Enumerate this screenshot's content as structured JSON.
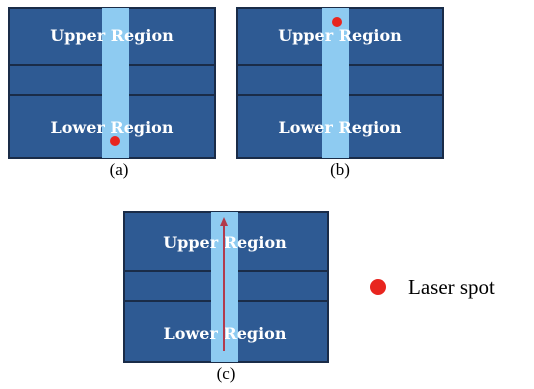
{
  "panels": [
    {
      "upper_label": "Upper Region",
      "lower_label": "Lower Region",
      "caption": "(a)",
      "laser_spot": "lower"
    },
    {
      "upper_label": "Upper Region",
      "lower_label": "Lower Region",
      "caption": "(b)",
      "laser_spot": "upper"
    },
    {
      "upper_label": "Upper Region",
      "lower_label": "Lower Region",
      "caption": "(c)",
      "laser_spot": "scan-path"
    }
  ],
  "legend": {
    "label": "Laser spot",
    "icon": "laser-spot-dot-icon"
  },
  "colors": {
    "panel_fill": "#2e5a93",
    "panel_line": "#1a2c48",
    "strip_fill": "#8ecbf1",
    "laser": "#e8251f",
    "scan_arrow": "#b23a4c"
  }
}
